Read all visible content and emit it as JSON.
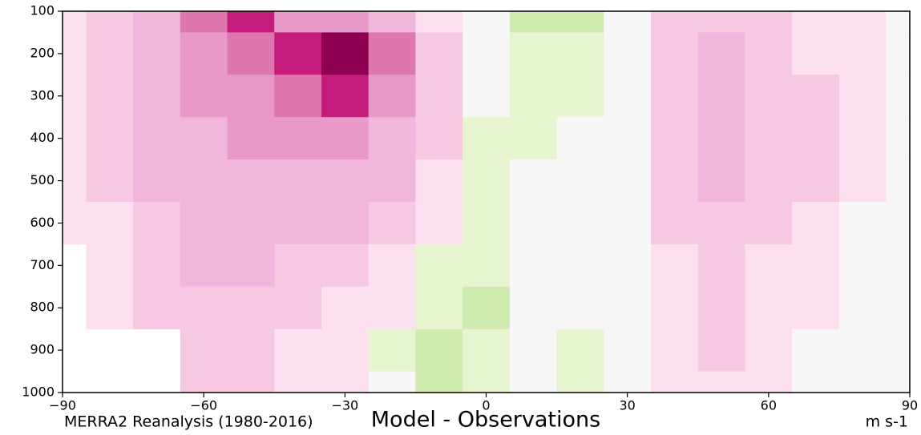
{
  "chart_data": {
    "type": "contour",
    "title": "Model - Observations",
    "subtitle": "MERRA2 Reanalysis (1980-2016)",
    "units": "m s-1",
    "x": [
      -90,
      -80,
      -70,
      -60,
      -50,
      -40,
      -30,
      -20,
      -10,
      0,
      10,
      20,
      30,
      40,
      50,
      60,
      70,
      80,
      90
    ],
    "y": [
      100,
      200,
      300,
      400,
      500,
      600,
      700,
      800,
      900,
      1000
    ],
    "z": [
      [
        1,
        2,
        4,
        8,
        10,
        6,
        6,
        4,
        1,
        0,
        -2,
        -2,
        0,
        2,
        2,
        2,
        1,
        1,
        0
      ],
      [
        1,
        2,
        4,
        6,
        8,
        9,
        12,
        8,
        2,
        0,
        -1,
        -1,
        0,
        2,
        4,
        2,
        1,
        1,
        0
      ],
      [
        1,
        2,
        4,
        5,
        6,
        8,
        9,
        6,
        2,
        0,
        -1,
        -1,
        0,
        2,
        4,
        2,
        2,
        1,
        0
      ],
      [
        1,
        2,
        3,
        4,
        6,
        6,
        6,
        4,
        2,
        -1,
        -1,
        0,
        0,
        2,
        3,
        2,
        2,
        1,
        0
      ],
      [
        1,
        2,
        3,
        4,
        4,
        4,
        4,
        3,
        1,
        -1,
        0,
        0,
        0,
        2,
        3,
        2,
        2,
        1,
        0
      ],
      [
        1,
        1,
        2,
        4,
        4,
        3,
        3,
        2,
        1,
        -1,
        0,
        0,
        0,
        2,
        2,
        2,
        1,
        0,
        0
      ],
      [
        null,
        1,
        2,
        3,
        3,
        2,
        2,
        1,
        -1,
        -1,
        0,
        0,
        0,
        1,
        2,
        1,
        1,
        0,
        0
      ],
      [
        null,
        1,
        2,
        2,
        2,
        2,
        1,
        1,
        -1,
        -2,
        0,
        0,
        0,
        1,
        2,
        1,
        1,
        0,
        0
      ],
      [
        null,
        null,
        null,
        2,
        2,
        1,
        1,
        -1,
        -2,
        -1,
        0,
        -1,
        0,
        1,
        2,
        1,
        0,
        0,
        0
      ],
      [
        null,
        null,
        null,
        2,
        2,
        1,
        1,
        0,
        -2,
        -1,
        0,
        -1,
        0,
        1,
        1,
        1,
        0,
        0,
        0
      ]
    ],
    "levels": [
      -2.5,
      -1.5,
      -0.5,
      0.5,
      1.5,
      3,
      5,
      7,
      9,
      11
    ],
    "colors": [
      "#b8e186",
      "#d0ecb0",
      "#e6f5d0",
      "#f7f7f7",
      "#fde0ef",
      "#f6c8e2",
      "#f1b6da",
      "#e899c7",
      "#de77ae",
      "#c51b7d",
      "#8e0152"
    ],
    "xlim": [
      -90,
      90
    ],
    "ylim": [
      1000,
      100
    ],
    "xticks": [
      {
        "value": -90,
        "label": "−90"
      },
      {
        "value": -60,
        "label": "−60"
      },
      {
        "value": -30,
        "label": "−30"
      },
      0,
      30,
      60,
      90
    ],
    "yticks": [
      100,
      200,
      300,
      400,
      500,
      600,
      700,
      800,
      900,
      1000
    ]
  }
}
